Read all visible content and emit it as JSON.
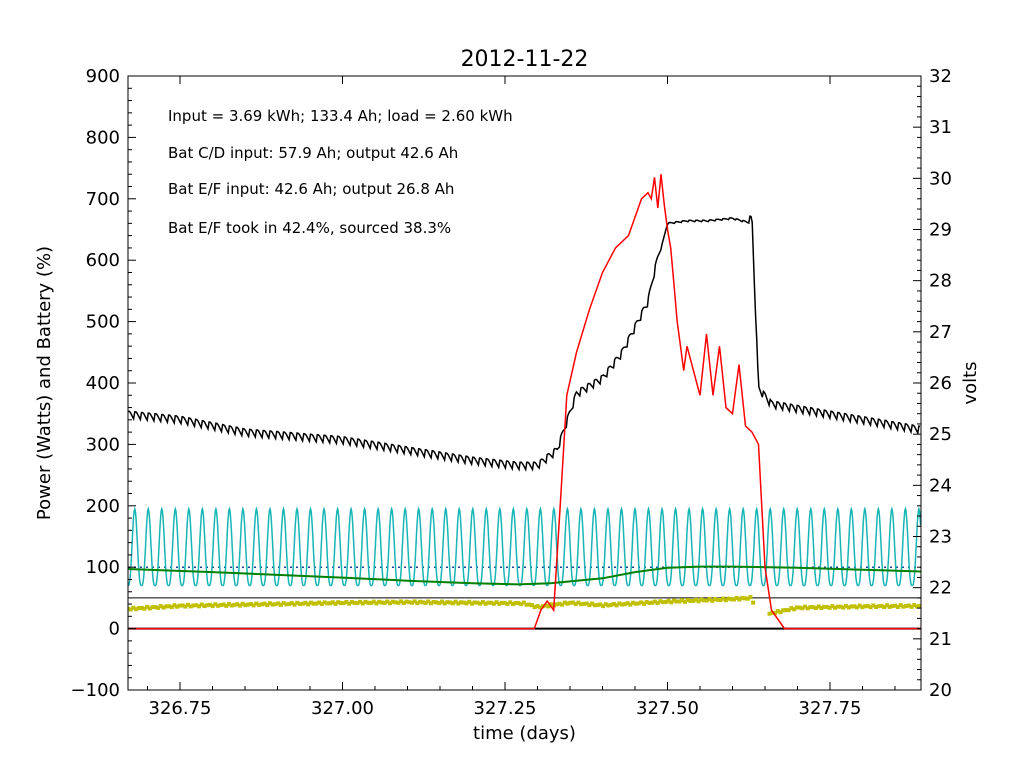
{
  "chart_data": {
    "type": "line",
    "title": "2012-11-22",
    "xlabel": "time (days)",
    "ylabel": "Power (Watts) and Battery (%)",
    "y2label": "volts",
    "xlim": [
      326.67,
      327.89
    ],
    "ylim": [
      -100,
      900
    ],
    "y2lim": [
      20,
      32
    ],
    "x_ticks": [
      326.75,
      327.0,
      327.25,
      327.5,
      327.75
    ],
    "x_tick_labels": [
      "326.75",
      "327.00",
      "327.25",
      "327.50",
      "327.75"
    ],
    "y_ticks": [
      -100,
      0,
      100,
      200,
      300,
      400,
      500,
      600,
      700,
      800,
      900
    ],
    "y_tick_labels": [
      "−100",
      "0",
      "100",
      "200",
      "300",
      "400",
      "500",
      "600",
      "700",
      "800",
      "900"
    ],
    "y2_ticks": [
      20,
      21,
      22,
      23,
      24,
      25,
      26,
      27,
      28,
      29,
      30,
      31,
      32
    ],
    "y2_tick_labels": [
      "20",
      "21",
      "22",
      "23",
      "24",
      "25",
      "26",
      "27",
      "28",
      "29",
      "30",
      "31",
      "32"
    ],
    "grid": false,
    "annotations": [
      "Input = 3.69 kWh; 133.4 Ah; load = 2.60 kWh",
      "Bat C/D input: 57.9 Ah; output 42.6 Ah",
      "Bat E/F input: 42.6 Ah; output 26.8 Ah",
      "Bat E/F took in 42.4%, sourced 38.3%"
    ],
    "reference_lines": [
      {
        "axis": "y",
        "value": 0,
        "color": "#000000"
      },
      {
        "axis": "y",
        "value": 50,
        "color": "#000000"
      },
      {
        "axis": "y",
        "value": 100,
        "color": "#1f3f8f",
        "style": "dotted"
      }
    ],
    "series": [
      {
        "color": "#000000",
        "axis": "y2",
        "style": "sawtooth",
        "x": [
          326.67,
          326.75,
          326.85,
          327.0,
          327.1,
          327.2,
          327.27,
          327.3,
          327.33,
          327.36,
          327.4,
          327.43,
          327.45,
          327.47,
          327.48,
          327.5,
          327.53,
          327.56,
          327.6,
          327.63,
          327.64,
          327.66,
          327.75,
          327.89
        ],
        "y": [
          25.3,
          25.2,
          24.95,
          24.8,
          24.6,
          24.4,
          24.3,
          24.3,
          24.6,
          25.7,
          26.0,
          26.5,
          27.0,
          27.5,
          28.1,
          29.1,
          29.15,
          29.15,
          29.2,
          29.1,
          25.8,
          25.5,
          25.3,
          25.0
        ],
        "amplitude": 0.15
      },
      {
        "color": "#ff0000",
        "axis": "y",
        "x": [
          326.67,
          327.0,
          327.25,
          327.295,
          327.305,
          327.315,
          327.325,
          327.335,
          327.345,
          327.36,
          327.38,
          327.4,
          327.42,
          327.44,
          327.45,
          327.46,
          327.47,
          327.475,
          327.48,
          327.485,
          327.49,
          327.495,
          327.5,
          327.505,
          327.51,
          327.515,
          327.52,
          327.525,
          327.53,
          327.55,
          327.56,
          327.57,
          327.58,
          327.59,
          327.6,
          327.61,
          327.62,
          327.63,
          327.64,
          327.65,
          327.66,
          327.68,
          327.7,
          327.89
        ],
        "y": [
          0,
          0,
          0,
          0,
          30,
          45,
          30,
          200,
          380,
          450,
          520,
          580,
          620,
          640,
          670,
          700,
          710,
          700,
          735,
          685,
          740,
          690,
          650,
          620,
          560,
          500,
          460,
          420,
          460,
          380,
          480,
          380,
          460,
          360,
          350,
          430,
          330,
          320,
          300,
          100,
          30,
          0,
          0,
          0
        ]
      },
      {
        "color": "#17b5b5",
        "axis": "y",
        "style": "oscillation",
        "x_start": 326.67,
        "x_end": 327.89,
        "period": 0.0208,
        "low": 70,
        "high": 195
      },
      {
        "color": "#008000",
        "axis": "y",
        "x": [
          326.67,
          326.8,
          327.0,
          327.1,
          327.2,
          327.27,
          327.32,
          327.4,
          327.45,
          327.5,
          327.55,
          327.6,
          327.7,
          327.8,
          327.89
        ],
        "y": [
          97,
          92,
          83,
          78,
          74,
          72,
          74,
          82,
          92,
          99,
          101,
          101,
          99,
          96,
          93
        ]
      },
      {
        "color": "#c0c000",
        "axis": "y",
        "style": "dots",
        "x": [
          326.67,
          326.75,
          326.9,
          327.0,
          327.1,
          327.2,
          327.28,
          327.3,
          327.32,
          327.35,
          327.4,
          327.5,
          327.6,
          327.63,
          327.64,
          327.66,
          327.7,
          327.8,
          327.89
        ],
        "y": [
          32,
          37,
          40,
          42,
          43,
          42,
          41,
          35,
          38,
          42,
          38,
          44,
          48,
          50,
          15,
          25,
          34,
          36,
          37
        ]
      }
    ]
  }
}
